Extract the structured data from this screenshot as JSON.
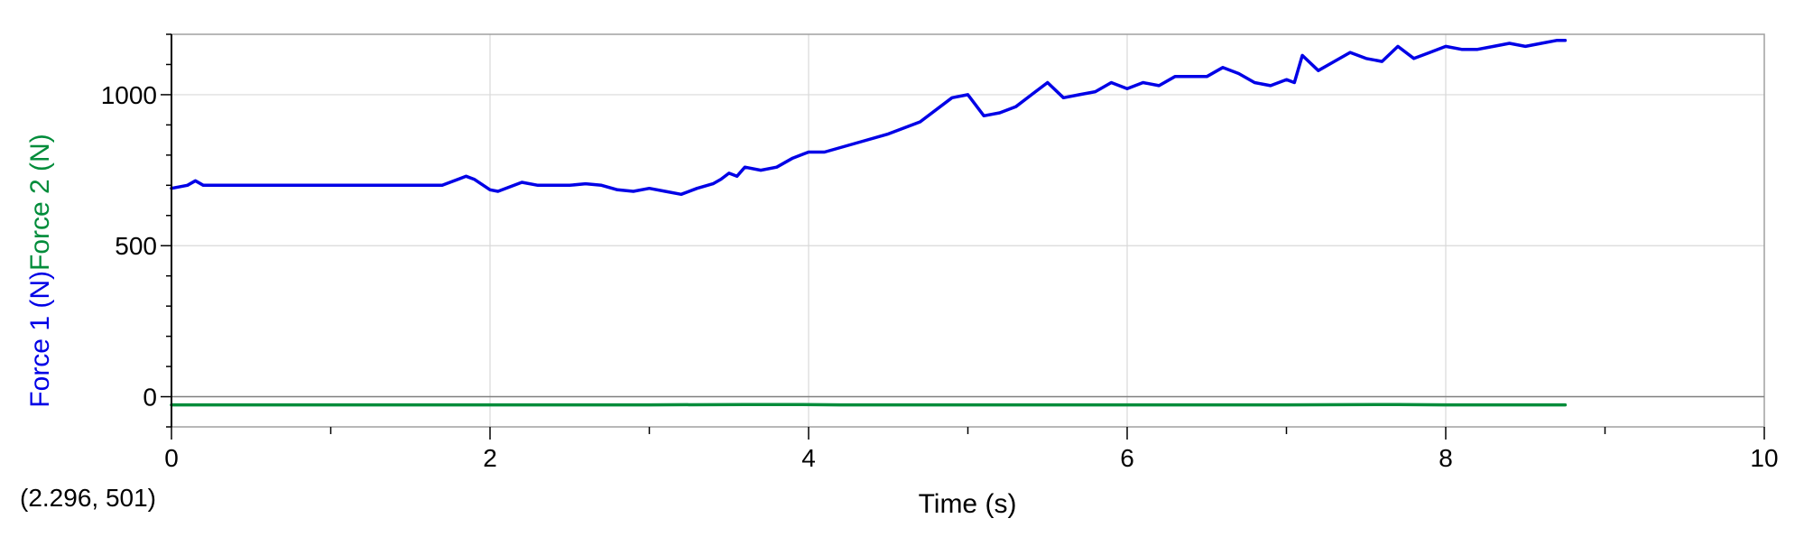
{
  "chart_data": {
    "type": "line",
    "title": "",
    "xlabel": "Time (s)",
    "ylabels": [
      {
        "text": "Force 1 (N)",
        "color": "#0000e6"
      },
      {
        "text": "Force 2 (N)",
        "color": "#008c3a"
      }
    ],
    "xlim": [
      0,
      10
    ],
    "ylim": [
      -100,
      1200
    ],
    "x_ticks": [
      0,
      2,
      4,
      6,
      8,
      10
    ],
    "x_tick_labels": [
      "0",
      "2",
      "4",
      "6",
      "8",
      "10"
    ],
    "y_ticks": [
      0,
      500,
      1000
    ],
    "y_tick_labels": [
      "0",
      "500",
      "1000"
    ],
    "grid": true,
    "legend": "none",
    "series": [
      {
        "color": "#0000e6",
        "x": [
          0,
          0.1,
          0.15,
          0.2,
          0.3,
          0.5,
          0.7,
          1.0,
          1.3,
          1.5,
          1.7,
          1.85,
          1.9,
          2.0,
          2.05,
          2.2,
          2.3,
          2.4,
          2.5,
          2.6,
          2.7,
          2.8,
          2.9,
          3.0,
          3.1,
          3.2,
          3.3,
          3.4,
          3.45,
          3.5,
          3.55,
          3.6,
          3.7,
          3.8,
          3.9,
          4.0,
          4.1,
          4.3,
          4.5,
          4.7,
          4.9,
          5.0,
          5.1,
          5.2,
          5.3,
          5.4,
          5.5,
          5.6,
          5.7,
          5.8,
          5.9,
          6.0,
          6.1,
          6.2,
          6.3,
          6.4,
          6.5,
          6.6,
          6.7,
          6.8,
          6.9,
          7.0,
          7.05,
          7.1,
          7.2,
          7.3,
          7.4,
          7.5,
          7.6,
          7.7,
          7.8,
          7.9,
          8.0,
          8.1,
          8.2,
          8.3,
          8.4,
          8.5,
          8.6,
          8.7,
          8.75
        ],
        "y": [
          690,
          700,
          715,
          700,
          700,
          700,
          700,
          700,
          700,
          700,
          700,
          730,
          720,
          685,
          680,
          710,
          700,
          700,
          700,
          705,
          700,
          685,
          680,
          690,
          680,
          670,
          690,
          705,
          720,
          740,
          730,
          760,
          750,
          760,
          790,
          810,
          810,
          840,
          870,
          910,
          990,
          1000,
          930,
          940,
          960,
          1000,
          1040,
          990,
          1000,
          1010,
          1040,
          1020,
          1040,
          1030,
          1060,
          1060,
          1060,
          1090,
          1070,
          1040,
          1030,
          1050,
          1040,
          1130,
          1080,
          1110,
          1140,
          1120,
          1110,
          1160,
          1120,
          1140,
          1160,
          1150,
          1150,
          1160,
          1170,
          1160,
          1170,
          1180,
          1180
        ]
      },
      {
        "color": "#008c3a",
        "x": [
          0,
          1,
          2,
          3,
          3.6,
          3.9,
          4.2,
          5,
          6,
          7,
          7.7,
          8,
          8.75
        ],
        "y": [
          -27,
          -27,
          -27,
          -27,
          -26,
          -26,
          -27,
          -27,
          -27,
          -27,
          -26,
          -27,
          -27
        ]
      }
    ],
    "readout": "(2.296, 501)"
  }
}
